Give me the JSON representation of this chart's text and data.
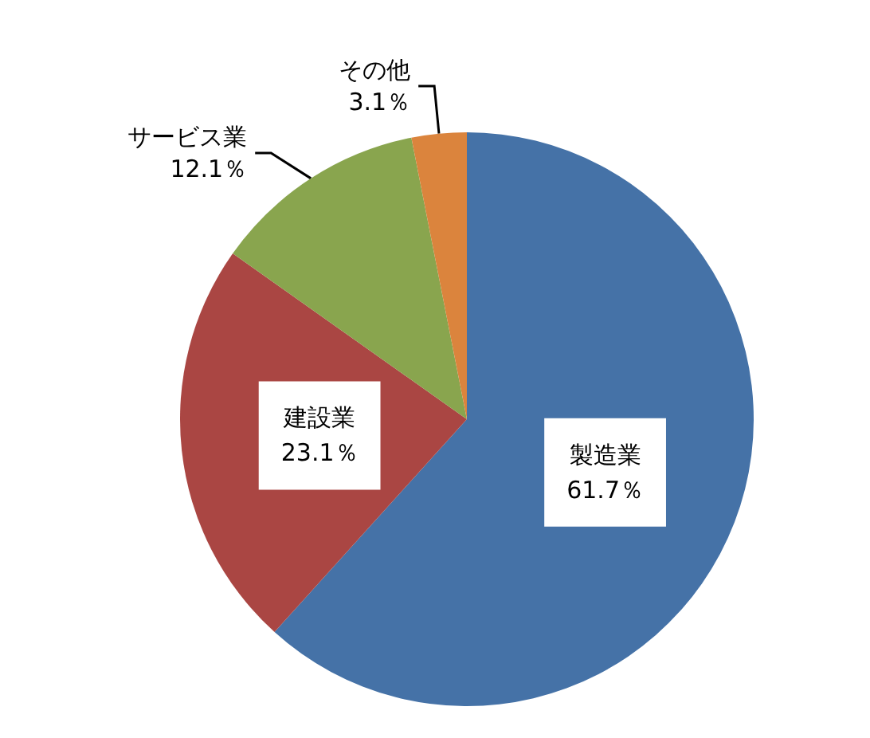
{
  "chart_data": {
    "type": "pie",
    "categories": [
      "製造業",
      "建設業",
      "サービス業",
      "その他"
    ],
    "values": [
      61.7,
      23.1,
      12.1,
      3.1
    ],
    "colors": [
      "#4572a7",
      "#aa4643",
      "#89a54e",
      "#db843d"
    ],
    "value_labels": [
      "61.7％",
      "23.1％",
      "12.1％",
      "3.1％"
    ],
    "legend": false
  }
}
